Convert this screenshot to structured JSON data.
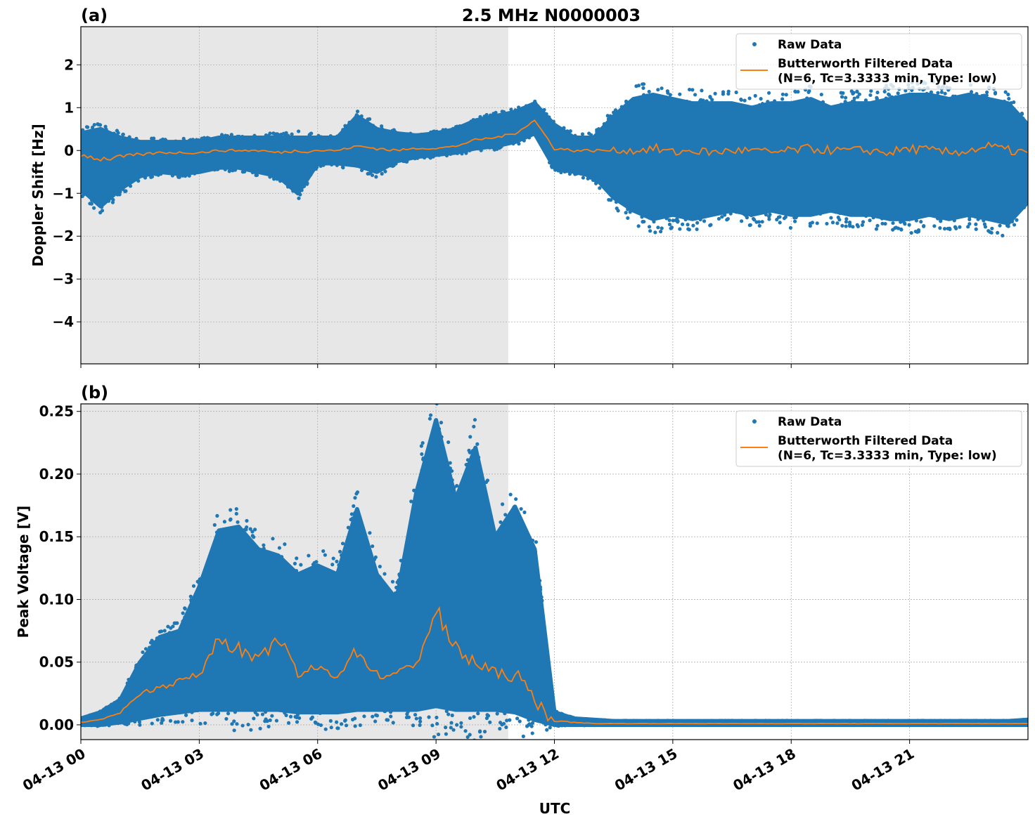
{
  "title": "2.5 MHz N0000003",
  "xlabel": "UTC",
  "x_tick_labels": [
    "04-13 00",
    "04-13 03",
    "04-13 06",
    "04-13 09",
    "04-13 12",
    "04-13 15",
    "04-13 18",
    "04-13 21"
  ],
  "colors": {
    "raw": "#1f77b4",
    "filtered": "#ff7f0e",
    "shade": "#e7e7e7",
    "grid": "#b0b0b0"
  },
  "chart_data": [
    {
      "type": "scatter",
      "panel_label": "(a)",
      "ylabel": "Doppler Shift [Hz]",
      "x_unit": "hours UTC on 04-13",
      "xlim": [
        0,
        24
      ],
      "ylim": [
        -4.98,
        2.89
      ],
      "yticks": [
        2,
        1,
        0,
        -1,
        -2,
        -3,
        -4
      ],
      "y_tick_labels": [
        "2",
        "1",
        "0",
        "−1",
        "−2",
        "−3",
        "−4"
      ],
      "shaded_x_range": [
        0,
        10.83
      ],
      "grid": true,
      "legend": {
        "placement": "top-right",
        "entries": [
          "Raw Data",
          "Butterworth Filtered Data",
          "(N=6, Tc=3.3333 min, Type: low)"
        ]
      },
      "x": [
        0,
        0.5,
        1,
        1.5,
        2,
        2.5,
        3,
        3.5,
        4,
        4.5,
        5,
        5.5,
        6,
        6.5,
        7,
        7.5,
        8,
        8.5,
        9,
        9.5,
        10,
        10.5,
        11,
        11.5,
        12,
        12.5,
        13,
        13.5,
        14,
        14.5,
        15,
        15.5,
        16,
        16.5,
        17,
        17.5,
        18,
        18.5,
        19,
        19.5,
        20,
        20.5,
        21,
        21.5,
        22,
        22.5,
        23,
        23.5,
        24
      ],
      "filtered": [
        -0.1,
        -0.2,
        -0.15,
        -0.1,
        -0.05,
        -0.05,
        -0.05,
        0,
        0,
        0,
        -0.05,
        0,
        0,
        0,
        0.1,
        0.05,
        0,
        0.05,
        0.05,
        0.1,
        0.25,
        0.3,
        0.4,
        0.7,
        0.05,
        0,
        0,
        0,
        0,
        0.05,
        -0.05,
        0,
        -0.05,
        0,
        0,
        -0.05,
        0,
        0.05,
        0,
        0,
        0,
        -0.05,
        0.05,
        0,
        -0.05,
        0,
        0.1,
        0,
        -0.05
      ],
      "raw_low": [
        -0.9,
        -1.3,
        -0.9,
        -0.6,
        -0.5,
        -0.55,
        -0.5,
        -0.4,
        -0.4,
        -0.5,
        -0.6,
        -1.0,
        -0.3,
        -0.3,
        -0.35,
        -0.5,
        -0.25,
        -0.15,
        -0.1,
        -0.05,
        0.05,
        0.1,
        0.2,
        0.4,
        -0.4,
        -0.5,
        -0.6,
        -1.1,
        -1.4,
        -1.6,
        -1.5,
        -1.6,
        -1.5,
        -1.4,
        -1.5,
        -1.4,
        -1.5,
        -1.5,
        -1.4,
        -1.5,
        -1.5,
        -1.6,
        -1.6,
        -1.5,
        -1.6,
        -1.5,
        -1.6,
        -1.7,
        -1.2
      ],
      "raw_high": [
        0.4,
        0.5,
        0.3,
        0.2,
        0.2,
        0.2,
        0.2,
        0.3,
        0.3,
        0.3,
        0.3,
        0.3,
        0.3,
        0.3,
        0.8,
        0.5,
        0.4,
        0.35,
        0.4,
        0.5,
        0.7,
        0.8,
        0.9,
        1.1,
        0.6,
        0.3,
        0.3,
        0.8,
        1.2,
        1.3,
        1.2,
        1.1,
        1.1,
        1.1,
        1.0,
        1.1,
        1.1,
        1.2,
        1.0,
        1.1,
        1.1,
        1.2,
        1.3,
        1.3,
        1.2,
        1.3,
        1.2,
        1.1,
        0.6
      ]
    },
    {
      "type": "scatter",
      "panel_label": "(b)",
      "ylabel": "Peak Voltage [V]",
      "x_unit": "hours UTC on 04-13",
      "xlim": [
        0,
        24
      ],
      "ylim": [
        -0.0118,
        0.256
      ],
      "yticks": [
        0.25,
        0.2,
        0.15,
        0.1,
        0.05,
        0.0
      ],
      "y_tick_labels": [
        "0.25",
        "0.20",
        "0.15",
        "0.10",
        "0.05",
        "0.00"
      ],
      "shaded_x_range": [
        0,
        10.83
      ],
      "grid": true,
      "legend": {
        "placement": "top-right",
        "entries": [
          "Raw Data",
          "Butterworth Filtered Data",
          "(N=6, Tc=3.3333 min, Type: low)"
        ]
      },
      "x": [
        0,
        0.5,
        1,
        1.5,
        2,
        2.5,
        3,
        3.5,
        4,
        4.5,
        5,
        5.5,
        6,
        6.5,
        7,
        7.5,
        8,
        8.5,
        9,
        9.5,
        10,
        10.5,
        11,
        11.5,
        12,
        12.5,
        13,
        13.5,
        14,
        14.5,
        15,
        15.5,
        16,
        16.5,
        17,
        17.5,
        18,
        18.5,
        19,
        19.5,
        20,
        20.5,
        21,
        21.5,
        22,
        22.5,
        23,
        23.5,
        24
      ],
      "filtered": [
        0.002,
        0.004,
        0.01,
        0.025,
        0.03,
        0.035,
        0.04,
        0.07,
        0.06,
        0.05,
        0.07,
        0.04,
        0.045,
        0.04,
        0.06,
        0.04,
        0.04,
        0.05,
        0.09,
        0.06,
        0.05,
        0.04,
        0.04,
        0.02,
        0.003,
        0.002,
        0.001,
        0.001,
        0.001,
        0.001,
        0.001,
        0.001,
        0.001,
        0.001,
        0.001,
        0.001,
        0.001,
        0.001,
        0.001,
        0.001,
        0.001,
        0.001,
        0.001,
        0.001,
        0.001,
        0.001,
        0.001,
        0.001,
        0.001
      ],
      "raw_low": [
        0,
        0,
        0.002,
        0.005,
        0.008,
        0.01,
        0.012,
        0.012,
        0.012,
        0.012,
        0.012,
        0.01,
        0.01,
        0.01,
        0.012,
        0.012,
        0.012,
        0.012,
        0.015,
        0.012,
        0.012,
        0.012,
        0.01,
        0.004,
        0,
        0,
        0,
        0,
        0,
        0,
        0,
        0,
        0,
        0,
        0,
        0,
        0,
        0,
        0,
        0,
        0,
        0,
        0,
        0,
        0,
        0,
        0,
        0,
        0
      ],
      "raw_high": [
        0.005,
        0.01,
        0.02,
        0.05,
        0.07,
        0.075,
        0.11,
        0.155,
        0.158,
        0.14,
        0.135,
        0.12,
        0.127,
        0.12,
        0.172,
        0.12,
        0.1,
        0.185,
        0.243,
        0.18,
        0.221,
        0.15,
        0.174,
        0.14,
        0.01,
        0.005,
        0.004,
        0.003,
        0.003,
        0.003,
        0.003,
        0.003,
        0.003,
        0.003,
        0.003,
        0.003,
        0.003,
        0.003,
        0.003,
        0.003,
        0.003,
        0.003,
        0.003,
        0.003,
        0.003,
        0.003,
        0.003,
        0.003,
        0.004
      ]
    }
  ]
}
